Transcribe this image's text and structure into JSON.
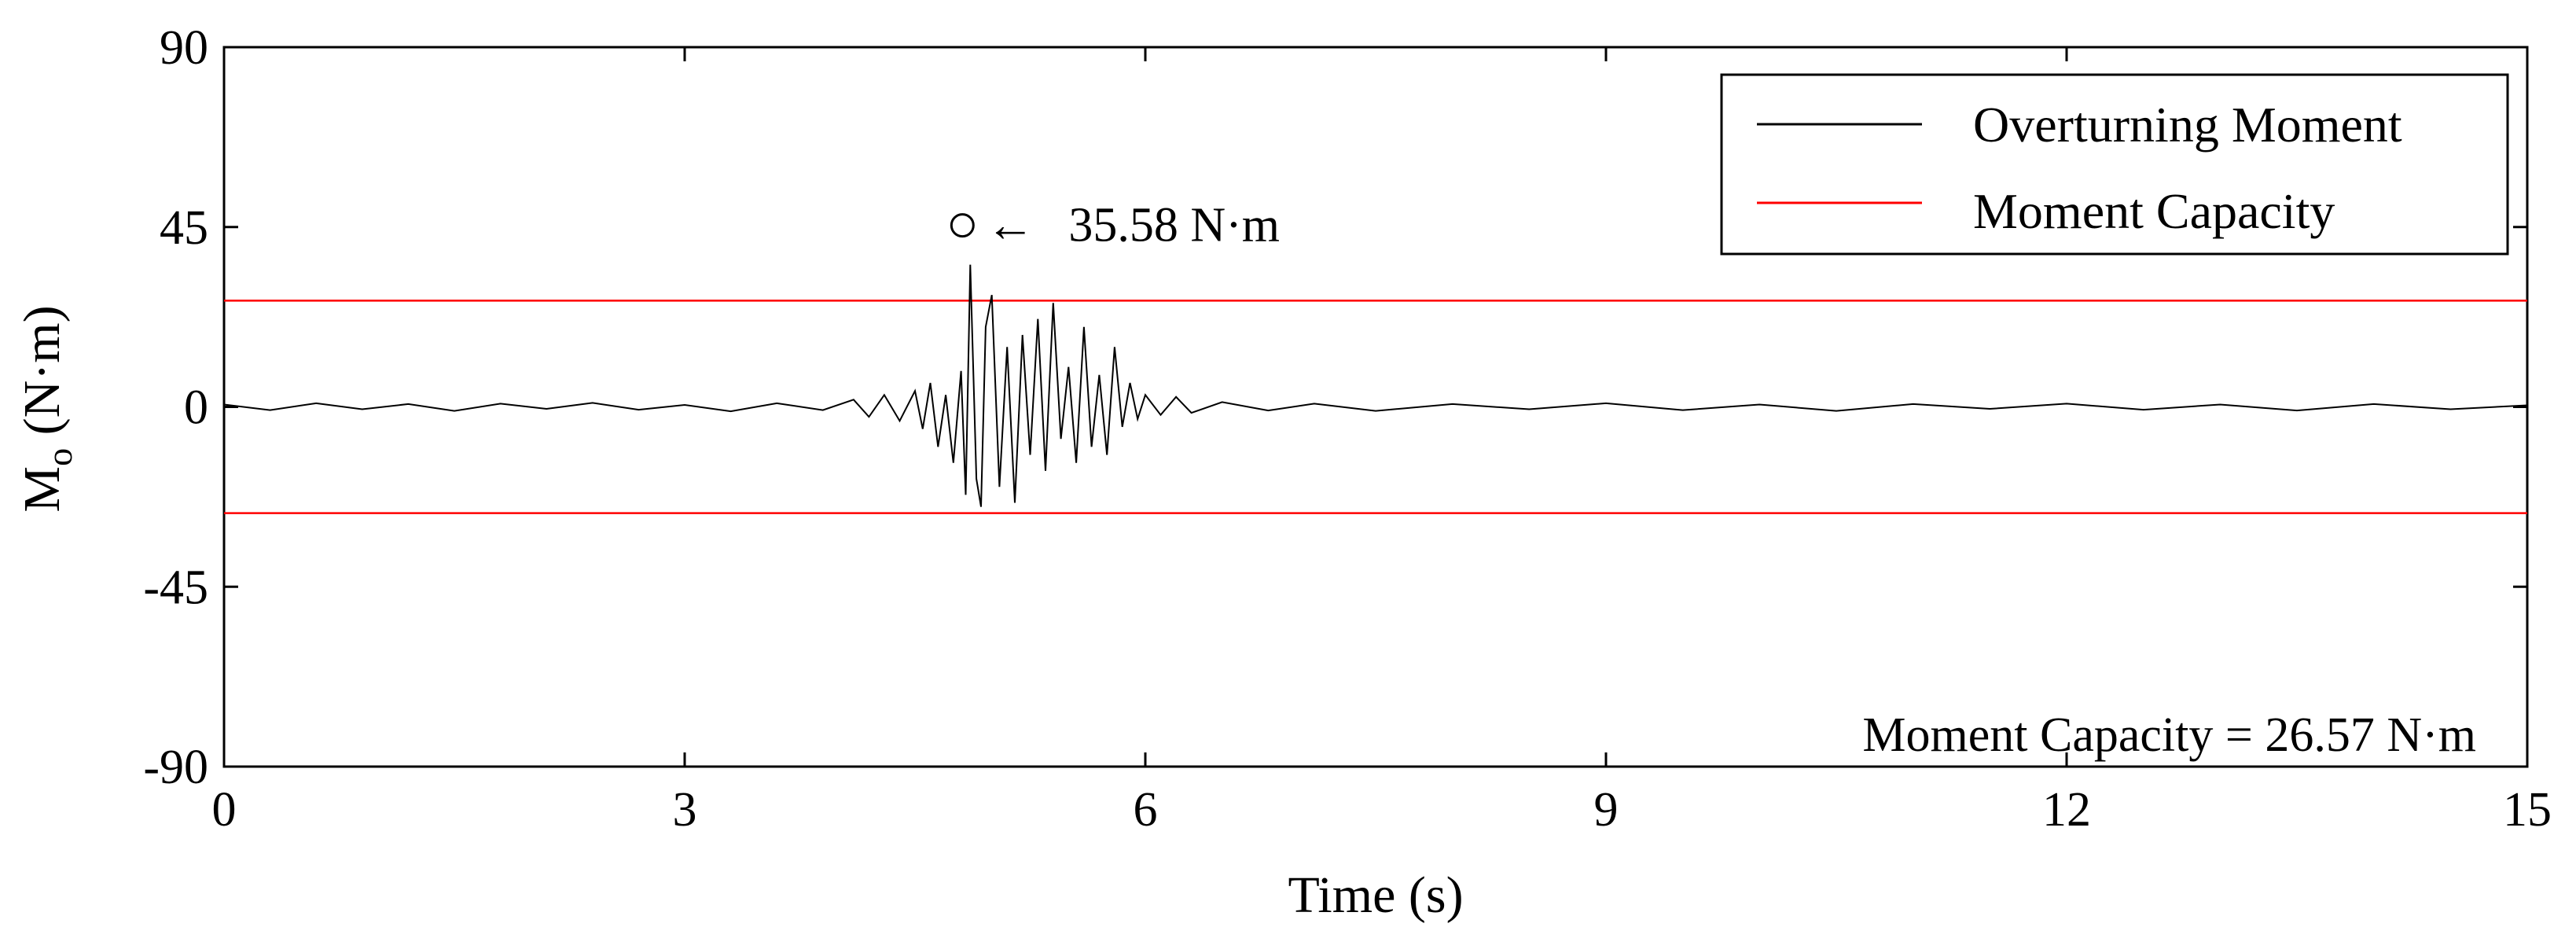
{
  "chart_data": {
    "type": "line",
    "xlabel": "Time (s)",
    "ylabel_main": "M",
    "ylabel_sub": "o",
    "ylabel_unit": "(N·m)",
    "xlim": [
      0,
      15
    ],
    "ylim": [
      -90,
      90
    ],
    "xticks": [
      0,
      3,
      6,
      9,
      12,
      15
    ],
    "xtick_labels": [
      "0",
      "3",
      "6",
      "9",
      "12",
      "15"
    ],
    "yticks": [
      90,
      45,
      0,
      -45,
      -90
    ],
    "ytick_labels": [
      "90",
      "45",
      "0",
      "-45",
      "-90"
    ],
    "grid": false,
    "legend_position": "top-right",
    "series": [
      {
        "name": "Overturning Moment",
        "color": "#000000",
        "x": [
          0,
          0.3,
          0.6,
          0.9,
          1.2,
          1.5,
          1.8,
          2.1,
          2.4,
          2.7,
          3.0,
          3.3,
          3.6,
          3.9,
          4.1,
          4.2,
          4.3,
          4.4,
          4.5,
          4.55,
          4.6,
          4.65,
          4.7,
          4.75,
          4.8,
          4.83,
          4.86,
          4.9,
          4.93,
          4.96,
          5.0,
          5.05,
          5.1,
          5.15,
          5.2,
          5.25,
          5.3,
          5.35,
          5.4,
          5.45,
          5.5,
          5.55,
          5.6,
          5.65,
          5.7,
          5.75,
          5.8,
          5.85,
          5.9,
          5.95,
          6.0,
          6.1,
          6.2,
          6.3,
          6.5,
          6.8,
          7.1,
          7.5,
          8.0,
          8.5,
          9.0,
          9.5,
          10.0,
          10.5,
          11.0,
          11.5,
          12.0,
          12.5,
          13.0,
          13.5,
          14.0,
          14.5,
          15.0
        ],
        "values": [
          0.6,
          -0.8,
          0.9,
          -0.6,
          0.7,
          -1.0,
          0.8,
          -0.5,
          1.0,
          -0.7,
          0.5,
          -1.1,
          0.9,
          -0.8,
          1.8,
          -2.5,
          3.0,
          -3.5,
          4.0,
          -5.5,
          6.0,
          -10.0,
          3.0,
          -14.0,
          9.0,
          -22.0,
          35.58,
          -18.0,
          -25.0,
          20.0,
          28.0,
          -20.0,
          15.0,
          -24.0,
          18.0,
          -12.0,
          22.0,
          -16.0,
          26.0,
          -8.0,
          10.0,
          -14.0,
          20.0,
          -10.0,
          8.0,
          -12.0,
          15.0,
          -5.0,
          6.0,
          -3.0,
          3.0,
          -2.0,
          2.5,
          -1.5,
          1.2,
          -0.9,
          0.8,
          -1.0,
          0.7,
          -0.6,
          0.9,
          -0.8,
          0.6,
          -1.0,
          0.7,
          -0.5,
          0.8,
          -0.7,
          0.6,
          -0.9,
          0.7,
          -0.6,
          0.4
        ]
      },
      {
        "name": "Moment Capacity",
        "color": "#ff0000",
        "values_constant": [
          26.57,
          -26.57
        ]
      }
    ],
    "peak": {
      "x": 4.86,
      "y": 35.58,
      "label": "35.58  N·m",
      "arrow": "←"
    },
    "capacity_annotation": "Moment Capacity =  26.57  N·m"
  }
}
